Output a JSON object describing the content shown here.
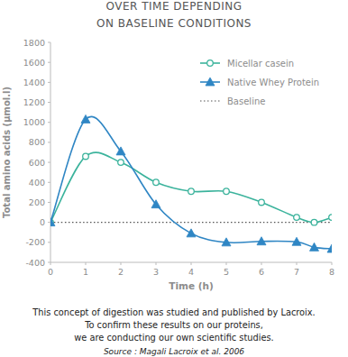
{
  "chart_data": {
    "type": "line",
    "title": "OVER TIME DEPENDING",
    "subtitle": "ON BASELINE CONDITIONS",
    "x_label": "Time (h)",
    "y_label": "Total amino acids (µmol.l)",
    "x": [
      0,
      1,
      2,
      3,
      4,
      5,
      6,
      7,
      7.5,
      8
    ],
    "series": [
      {
        "name": "Micellar casein",
        "color": "#3bb39c",
        "marker": "circle",
        "line_style": "solid",
        "values": [
          0,
          660,
          600,
          400,
          310,
          310,
          200,
          50,
          0,
          50
        ]
      },
      {
        "name": "Native Whey Protein",
        "color": "#2f86c4",
        "marker": "triangle",
        "line_style": "solid",
        "values": [
          0,
          1030,
          710,
          180,
          -110,
          -200,
          -190,
          -195,
          -250,
          -265
        ]
      },
      {
        "name": "Baseline",
        "color": "#555555",
        "marker": "none",
        "line_style": "dotted",
        "values": [
          0,
          0,
          0,
          0,
          0,
          0,
          0,
          0,
          0,
          0
        ]
      }
    ],
    "xlim": [
      0,
      8
    ],
    "xticks": [
      0,
      1,
      2,
      3,
      4,
      5,
      6,
      7,
      8
    ],
    "ylim": [
      -400,
      1800
    ],
    "yticks": [
      -400,
      -200,
      0,
      200,
      400,
      600,
      800,
      1000,
      1200,
      1400,
      1600,
      1800
    ],
    "grid": false,
    "legend": "upper right",
    "caption": [
      "This concept of digestion was studied and published by Lacroix.",
      "To confirm these results on our proteins,",
      "we are conducting our own scientific studies."
    ],
    "source": "Source : Magali Lacroix et al. 2006"
  }
}
